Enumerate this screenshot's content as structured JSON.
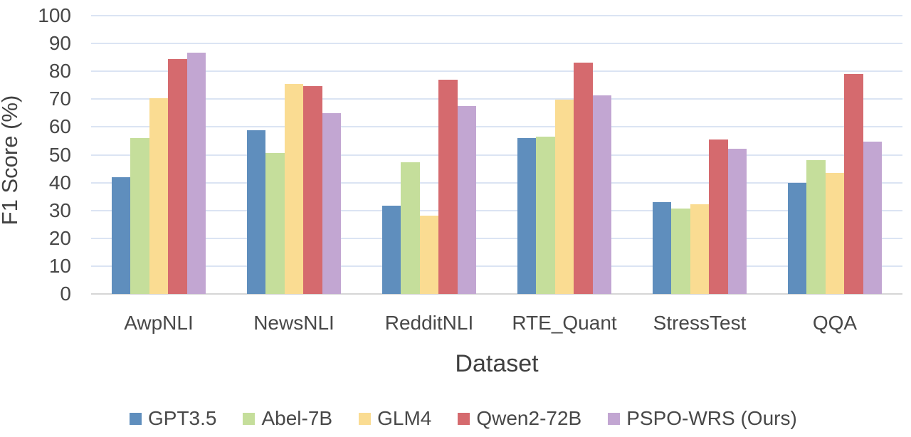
{
  "chart_data": {
    "type": "bar",
    "title": "",
    "xlabel": "Dataset",
    "ylabel": "F1 Score (%)",
    "ylim": [
      0,
      100
    ],
    "ytick_step": 10,
    "yticks": [
      0,
      10,
      20,
      30,
      40,
      50,
      60,
      70,
      80,
      90,
      100
    ],
    "grid": "horizontal",
    "legend_position": "bottom",
    "categories": [
      "AwpNLI",
      "NewsNLI",
      "RedditNLI",
      "RTE_Quant",
      "StressTest",
      "QQA"
    ],
    "series": [
      {
        "name": "GPT3.5",
        "color": "#5f8ebd",
        "values": [
          42.0,
          58.8,
          31.8,
          55.9,
          33.0,
          40.0
        ]
      },
      {
        "name": "Abel-7B",
        "color": "#c5de9b",
        "values": [
          56.0,
          50.6,
          47.2,
          56.6,
          30.7,
          48.1
        ]
      },
      {
        "name": "GLM4",
        "color": "#fadc92",
        "values": [
          70.3,
          75.5,
          28.1,
          69.8,
          32.2,
          43.4
        ]
      },
      {
        "name": "Qwen2-72B",
        "color": "#d56a6e",
        "values": [
          84.4,
          74.8,
          77.0,
          83.2,
          55.4,
          79.0
        ]
      },
      {
        "name": "PSPO-WRS (Ours)",
        "color": "#c2a6d2",
        "values": [
          86.6,
          64.9,
          67.5,
          71.4,
          52.1,
          54.7
        ]
      }
    ],
    "colors": {
      "gridline": "#dbe4f3",
      "axis_line": "#d6d6d6",
      "text": "#484848"
    }
  }
}
